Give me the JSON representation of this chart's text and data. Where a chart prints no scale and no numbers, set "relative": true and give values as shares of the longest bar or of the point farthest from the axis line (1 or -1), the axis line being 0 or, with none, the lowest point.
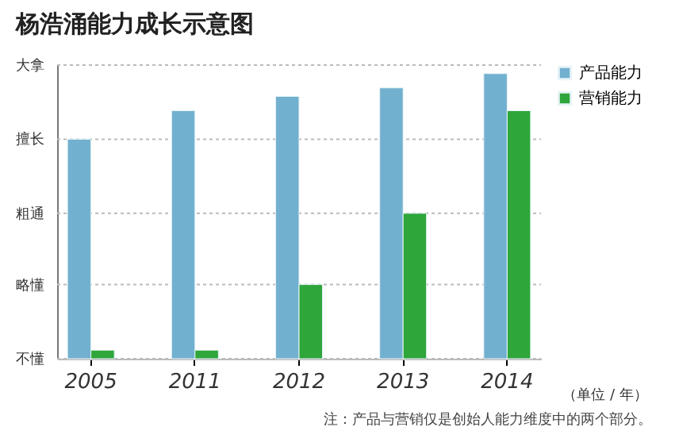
{
  "chart_data": {
    "type": "bar",
    "title": "杨浩涌能力成长示意图",
    "xlabel": "（单位 / 年）",
    "relative": true,
    "categories": [
      "2005",
      "2011",
      "2012",
      "2013",
      "2014"
    ],
    "series": [
      {
        "name": "产品能力",
        "color": "#72b0cf",
        "values": [
          0.77,
          0.87,
          0.92,
          0.95,
          1
        ]
      },
      {
        "name": "营销能力",
        "color": "#2ea63a",
        "values": [
          0.03,
          0.03,
          0.26,
          0.51,
          0.87
        ]
      }
    ],
    "ref_lines": [
      {
        "axis": "y",
        "value": 0,
        "label": "不懂",
        "color": "#bbbbbb",
        "line_style": "dashed"
      },
      {
        "axis": "y",
        "value": 0.26,
        "label": "略懂",
        "color": "#bbbbbb",
        "line_style": "dashed"
      },
      {
        "axis": "y",
        "value": 0.51,
        "label": "粗通",
        "color": "#bbbbbb",
        "line_style": "dashed"
      },
      {
        "axis": "y",
        "value": 0.77,
        "label": "擅长",
        "color": "#bbbbbb",
        "line_style": "dashed"
      },
      {
        "axis": "y",
        "value": 1.03,
        "label": "大拿",
        "color": "#bbbbbb",
        "line_style": "dashed"
      }
    ],
    "legend": "top right",
    "annotations": [
      "注：产品与营销仅是创始人能力维度中的两个部分。"
    ]
  }
}
